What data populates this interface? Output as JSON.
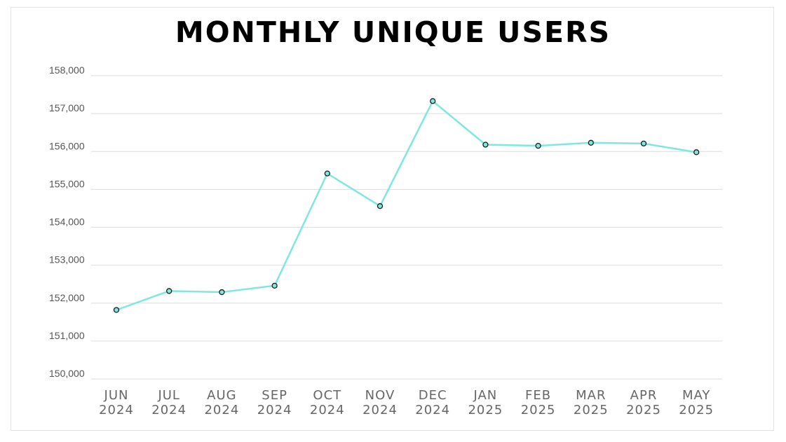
{
  "chart_data": {
    "type": "line",
    "title": "MONTHLY UNIQUE USERS",
    "xlabel": "",
    "ylabel": "",
    "categories": [
      [
        "JUN",
        "2024"
      ],
      [
        "JUL",
        "2024"
      ],
      [
        "AUG",
        "2024"
      ],
      [
        "SEP",
        "2024"
      ],
      [
        "OCT",
        "2024"
      ],
      [
        "NOV",
        "2024"
      ],
      [
        "DEC",
        "2024"
      ],
      [
        "JAN",
        "2025"
      ],
      [
        "FEB",
        "2025"
      ],
      [
        "MAR",
        "2025"
      ],
      [
        "APR",
        "2025"
      ],
      [
        "MAY",
        "2025"
      ]
    ],
    "series": [
      {
        "values": [
          151820,
          152320,
          152290,
          152460,
          155420,
          154560,
          157330,
          156180,
          156150,
          156230,
          156210,
          155980
        ],
        "color": "#7ee8e0",
        "marker_fill": "#7ee8e0",
        "marker_stroke": "#1a1a1a"
      }
    ],
    "ylim": [
      150000,
      158000
    ],
    "yticks": [
      150000,
      151000,
      152000,
      153000,
      154000,
      155000,
      156000,
      157000,
      158000
    ],
    "ytick_labels": [
      "150,000",
      "151,000",
      "152,000",
      "153,000",
      "154,000",
      "155,000",
      "156,000",
      "157,000",
      "158,000"
    ],
    "grid": true,
    "gridline_color": "#dddddd",
    "legend": "none"
  }
}
